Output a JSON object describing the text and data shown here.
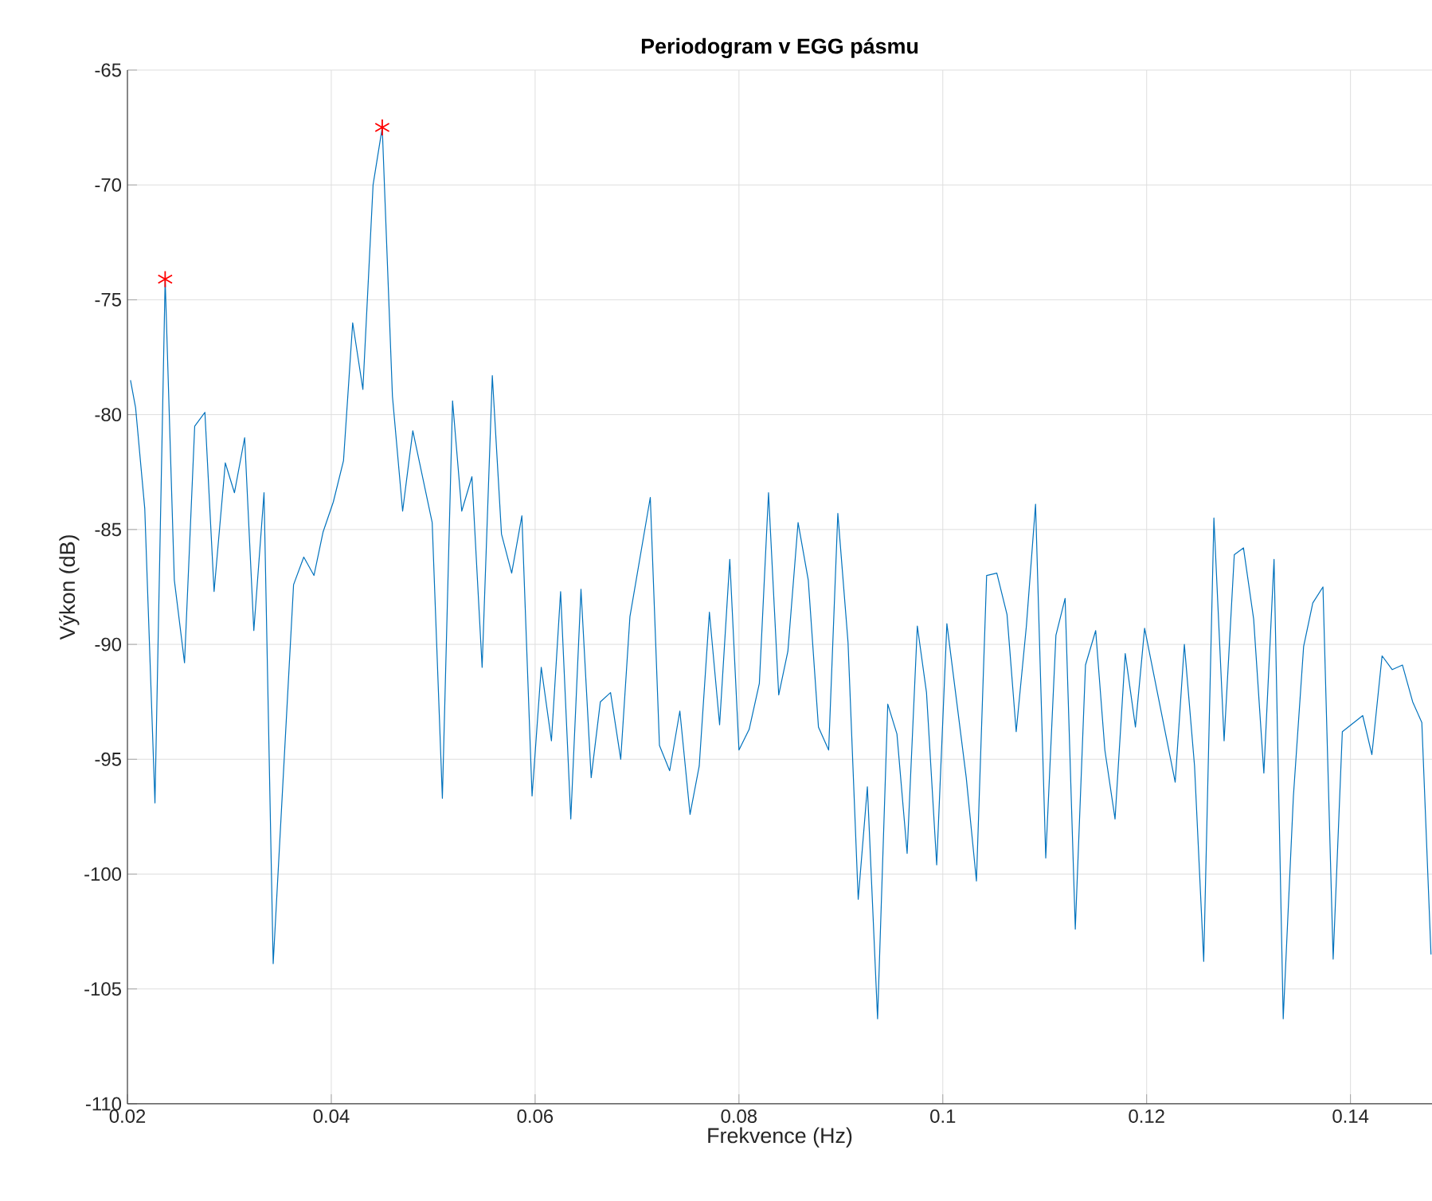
{
  "chart_data": {
    "type": "line",
    "title": "Periodogram v EGG pásmu",
    "xlabel": "Frekvence (Hz)",
    "ylabel": "Výkon (dB)",
    "xlim": [
      0.02,
      0.148
    ],
    "ylim": [
      -110,
      -65
    ],
    "xticks": [
      0.02,
      0.04,
      0.06,
      0.08,
      0.1,
      0.12,
      0.14
    ],
    "yticks": [
      -110,
      -105,
      -100,
      -95,
      -90,
      -85,
      -80,
      -75,
      -70,
      -65
    ],
    "grid": true,
    "series": [
      {
        "color": "#0072bd",
        "marker": "none",
        "x": [
          0.0203,
          0.0208,
          0.0217,
          0.0227,
          0.0237,
          0.0246,
          0.0256,
          0.0266,
          0.0276,
          0.0285,
          0.0296,
          0.0305,
          0.0315,
          0.0324,
          0.0334,
          0.0343,
          0.0363,
          0.0373,
          0.0383,
          0.0392,
          0.0402,
          0.0412,
          0.0421,
          0.0431,
          0.0441,
          0.045,
          0.046,
          0.047,
          0.048,
          0.0499,
          0.0509,
          0.0519,
          0.0528,
          0.0538,
          0.0548,
          0.0558,
          0.0567,
          0.0577,
          0.0587,
          0.0597,
          0.0606,
          0.0616,
          0.0625,
          0.0635,
          0.0645,
          0.0655,
          0.0664,
          0.0674,
          0.0684,
          0.0693,
          0.0713,
          0.0722,
          0.0732,
          0.0742,
          0.0752,
          0.0761,
          0.0771,
          0.0781,
          0.0791,
          0.08,
          0.081,
          0.082,
          0.0829,
          0.0839,
          0.0848,
          0.0858,
          0.0868,
          0.0878,
          0.0888,
          0.0897,
          0.0907,
          0.0917,
          0.0926,
          0.0936,
          0.0946,
          0.0955,
          0.0965,
          0.0975,
          0.0984,
          0.0994,
          0.1004,
          0.1023,
          0.1033,
          0.1043,
          0.1053,
          0.1063,
          0.1072,
          0.1082,
          0.1091,
          0.1101,
          0.1111,
          0.112,
          0.113,
          0.114,
          0.115,
          0.1159,
          0.1169,
          0.1179,
          0.1189,
          0.1198,
          0.1228,
          0.1237,
          0.1247,
          0.1256,
          0.1266,
          0.1276,
          0.1286,
          0.1295,
          0.1305,
          0.1315,
          0.1325,
          0.1334,
          0.1344,
          0.1354,
          0.1363,
          0.1373,
          0.1383,
          0.1392,
          0.1412,
          0.1421,
          0.1431,
          0.1441,
          0.1451,
          0.1461,
          0.147,
          0.1479
        ],
        "values": [
          -78.5,
          -79.7,
          -84.1,
          -96.9,
          -74.1,
          -87.2,
          -90.8,
          -80.5,
          -79.9,
          -87.7,
          -82.1,
          -83.4,
          -81.0,
          -89.4,
          -83.4,
          -103.9,
          -87.4,
          -86.2,
          -87.0,
          -85.1,
          -83.8,
          -82.0,
          -76.0,
          -78.9,
          -70.0,
          -67.5,
          -79.2,
          -84.2,
          -80.7,
          -84.7,
          -96.7,
          -79.4,
          -84.2,
          -82.7,
          -91.0,
          -78.3,
          -85.2,
          -86.9,
          -84.4,
          -96.6,
          -91.0,
          -94.2,
          -87.7,
          -97.6,
          -87.6,
          -95.8,
          -92.5,
          -92.1,
          -95.0,
          -88.8,
          -83.6,
          -94.4,
          -95.5,
          -92.9,
          -97.4,
          -95.3,
          -88.6,
          -93.5,
          -86.3,
          -94.6,
          -93.7,
          -91.7,
          -83.4,
          -92.2,
          -90.3,
          -84.7,
          -87.2,
          -93.6,
          -94.6,
          -84.3,
          -89.9,
          -101.1,
          -96.2,
          -106.3,
          -92.6,
          -93.9,
          -99.1,
          -89.2,
          -92.1,
          -99.6,
          -89.1,
          -95.8,
          -100.3,
          -87.0,
          -86.9,
          -88.7,
          -93.8,
          -89.2,
          -83.9,
          -99.3,
          -89.6,
          -88.0,
          -102.4,
          -90.9,
          -89.4,
          -94.6,
          -97.6,
          -90.4,
          -93.6,
          -89.3,
          -96.0,
          -90.0,
          -95.3,
          -103.8,
          -84.5,
          -94.2,
          -86.1,
          -85.8,
          -88.9,
          -95.6,
          -86.3,
          -106.3,
          -96.6,
          -90.1,
          -88.2,
          -87.5,
          -103.7,
          -93.8,
          -93.1,
          -94.8,
          -90.5,
          -91.1,
          -90.9,
          -92.5,
          -93.4,
          -103.5
        ]
      },
      {
        "type": "scatter",
        "color": "#ff0000",
        "marker": "cross",
        "x": [
          0.0237,
          0.045
        ],
        "values": [
          -74.1,
          -67.5
        ]
      }
    ]
  }
}
